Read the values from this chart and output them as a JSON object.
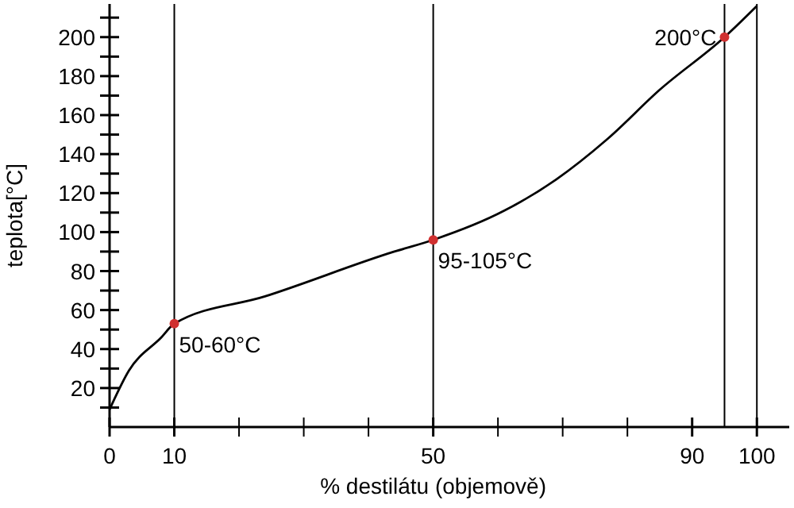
{
  "chart_data": {
    "type": "line",
    "xlabel": "% destilátu (objemově)",
    "ylabel": "teplota[°C]",
    "xlim": [
      0,
      105
    ],
    "ylim": [
      0,
      217
    ],
    "xticks": [
      0,
      10,
      {
        "value": 20,
        "label": null
      },
      {
        "value": 30,
        "label": null
      },
      {
        "value": 40,
        "label": null
      },
      50,
      {
        "value": 60,
        "label": null
      },
      {
        "value": 70,
        "label": null
      },
      {
        "value": 80,
        "label": null
      },
      90,
      100
    ],
    "yticks": [
      {
        "value": 10,
        "label": null
      },
      20,
      {
        "value": 30,
        "label": null
      },
      40,
      {
        "value": 50,
        "label": null
      },
      60,
      {
        "value": 70,
        "label": null
      },
      80,
      {
        "value": 90,
        "label": null
      },
      100,
      {
        "value": 110,
        "label": null
      },
      120,
      {
        "value": 130,
        "label": null
      },
      140,
      {
        "value": 150,
        "label": null
      },
      160,
      {
        "value": 170,
        "label": null
      },
      180,
      {
        "value": 190,
        "label": null
      },
      200,
      {
        "value": 210,
        "label": null
      }
    ],
    "series": [
      {
        "color": "#000000",
        "marker": "none",
        "x": [
          0,
          3,
          8,
          10,
          24,
          44,
          50,
          61,
          69,
          77,
          85,
          95,
          100
        ],
        "values": [
          9,
          29,
          46,
          53,
          67,
          90,
          96,
          111,
          127,
          148,
          173,
          200,
          216
        ]
      },
      {
        "type": "scatter",
        "color": "#d03030",
        "marker": "circle",
        "x": [
          10,
          50,
          95
        ],
        "values": [
          53,
          96,
          200
        ]
      }
    ],
    "ref_lines": [
      {
        "axis": "x",
        "value": 10,
        "color": "#000000"
      },
      {
        "axis": "x",
        "value": 50,
        "color": "#000000"
      },
      {
        "axis": "x",
        "value": 95,
        "color": "#000000"
      },
      {
        "axis": "x",
        "value": 100,
        "color": "#000000"
      }
    ],
    "annotations": [
      {
        "text": "50-60°C",
        "x": 10,
        "y": 53
      },
      {
        "text": "95-105°C",
        "x": 50,
        "y": 96
      },
      {
        "text": "200°C",
        "x": 95,
        "y": 200
      }
    ]
  }
}
